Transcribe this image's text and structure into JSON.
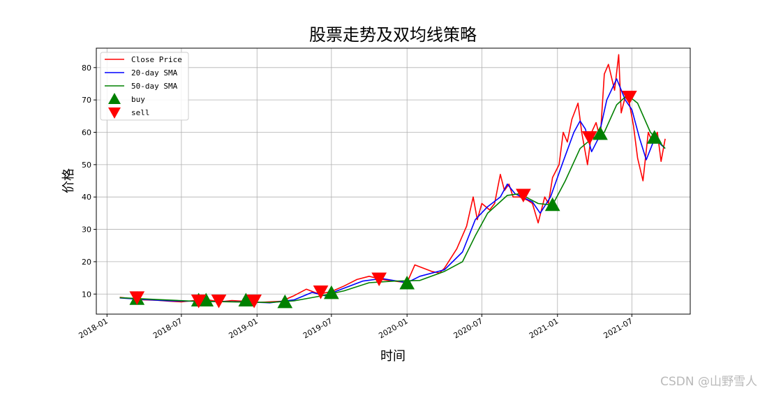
{
  "watermark": "CSDN @山野雪人",
  "colors": {
    "close": "#ff0000",
    "sma20": "#0000ff",
    "sma50": "#008000",
    "buy": "#008000",
    "sell": "#ff0000",
    "grid": "#b0b0b0"
  },
  "chart_data": {
    "type": "line",
    "title": "股票走势及双均线策略",
    "xlabel": "时间",
    "ylabel": "价格",
    "x_ticks": [
      "2018-01",
      "2018-07",
      "2019-01",
      "2019-07",
      "2020-01",
      "2020-07",
      "2021-01",
      "2021-07"
    ],
    "y_ticks": [
      10,
      20,
      30,
      40,
      50,
      60,
      70,
      80
    ],
    "xlim": [
      "2017-12-06",
      "2021-11-20"
    ],
    "ylim": [
      3.8,
      86
    ],
    "grid": true,
    "legend_position": "top-left",
    "legend": [
      "Close Price",
      "20-day SMA",
      "50-day SMA",
      "buy",
      "sell"
    ],
    "series": [
      {
        "name": "Close Price",
        "points": [
          [
            "2018-02-01",
            9.0
          ],
          [
            "2018-03-01",
            8.6
          ],
          [
            "2018-04-01",
            8.2
          ],
          [
            "2018-05-01",
            8.1
          ],
          [
            "2018-06-01",
            7.8
          ],
          [
            "2018-07-01",
            7.6
          ],
          [
            "2018-08-01",
            8.0
          ],
          [
            "2018-09-01",
            8.3
          ],
          [
            "2018-10-01",
            7.6
          ],
          [
            "2018-11-01",
            8.0
          ],
          [
            "2018-12-01",
            7.8
          ],
          [
            "2019-01-01",
            7.4
          ],
          [
            "2019-02-01",
            7.6
          ],
          [
            "2019-03-01",
            7.8
          ],
          [
            "2019-04-01",
            9.5
          ],
          [
            "2019-05-01",
            11.5
          ],
          [
            "2019-06-01",
            10.0
          ],
          [
            "2019-07-01",
            10.8
          ],
          [
            "2019-08-01",
            12.5
          ],
          [
            "2019-09-01",
            14.5
          ],
          [
            "2019-10-01",
            15.5
          ],
          [
            "2019-11-01",
            14.5
          ],
          [
            "2019-12-01",
            14.0
          ],
          [
            "2020-01-01",
            13.5
          ],
          [
            "2020-01-20",
            19.0
          ],
          [
            "2020-03-01",
            17.0
          ],
          [
            "2020-03-20",
            16.5
          ],
          [
            "2020-04-01",
            18.0
          ],
          [
            "2020-05-01",
            24.0
          ],
          [
            "2020-05-25",
            31.0
          ],
          [
            "2020-06-10",
            40.0
          ],
          [
            "2020-06-20",
            33.0
          ],
          [
            "2020-07-01",
            38.0
          ],
          [
            "2020-07-20",
            36.0
          ],
          [
            "2020-08-01",
            38.0
          ],
          [
            "2020-08-15",
            47.0
          ],
          [
            "2020-08-25",
            42.0
          ],
          [
            "2020-09-05",
            44.0
          ],
          [
            "2020-09-15",
            40.0
          ],
          [
            "2020-10-01",
            40.0
          ],
          [
            "2020-10-20",
            39.0
          ],
          [
            "2020-11-01",
            38.0
          ],
          [
            "2020-11-15",
            32.0
          ],
          [
            "2020-12-01",
            40.0
          ],
          [
            "2020-12-10",
            38.0
          ],
          [
            "2020-12-20",
            46.0
          ],
          [
            "2021-01-05",
            50.0
          ],
          [
            "2021-01-15",
            60.0
          ],
          [
            "2021-01-25",
            57.0
          ],
          [
            "2021-02-05",
            64.0
          ],
          [
            "2021-02-20",
            69.0
          ],
          [
            "2021-03-01",
            60.0
          ],
          [
            "2021-03-15",
            50.0
          ],
          [
            "2021-03-25",
            60.0
          ],
          [
            "2021-04-05",
            63.0
          ],
          [
            "2021-04-15",
            58.0
          ],
          [
            "2021-04-25",
            78.0
          ],
          [
            "2021-05-05",
            81.0
          ],
          [
            "2021-05-20",
            73.0
          ],
          [
            "2021-05-30",
            84.0
          ],
          [
            "2021-06-05",
            66.0
          ],
          [
            "2021-06-15",
            71.0
          ],
          [
            "2021-06-25",
            69.0
          ],
          [
            "2021-07-05",
            62.0
          ],
          [
            "2021-07-15",
            52.0
          ],
          [
            "2021-07-28",
            45.0
          ],
          [
            "2021-08-10",
            60.0
          ],
          [
            "2021-08-20",
            57.0
          ],
          [
            "2021-09-01",
            60.0
          ],
          [
            "2021-09-10",
            51.0
          ],
          [
            "2021-09-20",
            58.0
          ]
        ]
      },
      {
        "name": "20-day SMA",
        "points": [
          [
            "2018-02-01",
            8.8
          ],
          [
            "2018-04-01",
            8.3
          ],
          [
            "2018-06-01",
            7.9
          ],
          [
            "2018-08-01",
            7.8
          ],
          [
            "2018-10-01",
            7.7
          ],
          [
            "2018-12-01",
            7.6
          ],
          [
            "2019-02-01",
            7.3
          ],
          [
            "2019-04-01",
            8.2
          ],
          [
            "2019-05-15",
            10.5
          ],
          [
            "2019-06-15",
            9.5
          ],
          [
            "2019-07-15",
            11.0
          ],
          [
            "2019-09-15",
            14.0
          ],
          [
            "2019-11-01",
            14.8
          ],
          [
            "2020-01-01",
            13.5
          ],
          [
            "2020-02-01",
            15.5
          ],
          [
            "2020-04-01",
            17.5
          ],
          [
            "2020-05-15",
            23.0
          ],
          [
            "2020-06-15",
            33.0
          ],
          [
            "2020-07-15",
            37.0
          ],
          [
            "2020-08-15",
            40.0
          ],
          [
            "2020-09-01",
            44.0
          ],
          [
            "2020-09-20",
            41.0
          ],
          [
            "2020-11-01",
            38.5
          ],
          [
            "2020-11-20",
            35.0
          ],
          [
            "2020-12-15",
            40.0
          ],
          [
            "2021-01-15",
            51.0
          ],
          [
            "2021-02-10",
            60.0
          ],
          [
            "2021-02-25",
            63.5
          ],
          [
            "2021-03-10",
            61.0
          ],
          [
            "2021-03-25",
            54.0
          ],
          [
            "2021-04-10",
            58.0
          ],
          [
            "2021-05-01",
            70.0
          ],
          [
            "2021-05-25",
            76.5
          ],
          [
            "2021-06-15",
            70.0
          ],
          [
            "2021-07-01",
            67.0
          ],
          [
            "2021-07-20",
            58.0
          ],
          [
            "2021-08-05",
            51.5
          ],
          [
            "2021-08-25",
            58.0
          ],
          [
            "2021-09-20",
            55.0
          ]
        ]
      },
      {
        "name": "50-day SMA",
        "points": [
          [
            "2018-02-01",
            8.9
          ],
          [
            "2018-05-01",
            8.3
          ],
          [
            "2018-08-01",
            7.8
          ],
          [
            "2018-11-01",
            7.6
          ],
          [
            "2019-02-01",
            7.4
          ],
          [
            "2019-04-01",
            7.9
          ],
          [
            "2019-06-01",
            9.3
          ],
          [
            "2019-08-01",
            11.0
          ],
          [
            "2019-10-01",
            13.5
          ],
          [
            "2019-12-01",
            14.0
          ],
          [
            "2020-02-01",
            14.2
          ],
          [
            "2020-04-01",
            17.0
          ],
          [
            "2020-05-15",
            20.0
          ],
          [
            "2020-06-15",
            28.0
          ],
          [
            "2020-07-15",
            35.0
          ],
          [
            "2020-09-01",
            40.5
          ],
          [
            "2020-10-01",
            41.0
          ],
          [
            "2020-11-15",
            38.0
          ],
          [
            "2020-12-20",
            37.5
          ],
          [
            "2021-01-20",
            45.0
          ],
          [
            "2021-02-25",
            55.0
          ],
          [
            "2021-03-25",
            58.0
          ],
          [
            "2021-04-25",
            60.0
          ],
          [
            "2021-05-25",
            68.5
          ],
          [
            "2021-06-20",
            71.5
          ],
          [
            "2021-07-15",
            69.0
          ],
          [
            "2021-08-15",
            60.0
          ],
          [
            "2021-09-20",
            55.0
          ]
        ]
      }
    ],
    "buy_signals": [
      [
        "2018-03-15",
        8.5
      ],
      [
        "2018-08-12",
        8.0
      ],
      [
        "2018-08-30",
        8.0
      ],
      [
        "2018-12-05",
        8.0
      ],
      [
        "2019-03-10",
        7.5
      ],
      [
        "2019-07-01",
        10.3
      ],
      [
        "2020-01-01",
        13.3
      ],
      [
        "2020-12-20",
        37.5
      ],
      [
        "2021-04-15",
        59.5
      ],
      [
        "2021-08-25",
        58.3
      ]
    ],
    "sell_signals": [
      [
        "2018-03-15",
        9.0
      ],
      [
        "2018-08-12",
        8.0
      ],
      [
        "2018-09-30",
        8.0
      ],
      [
        "2018-12-25",
        8.0
      ],
      [
        "2019-06-05",
        10.8
      ],
      [
        "2019-10-25",
        14.8
      ],
      [
        "2020-10-10",
        40.7
      ],
      [
        "2021-03-20",
        58.5
      ],
      [
        "2021-06-25",
        71.0
      ]
    ]
  }
}
